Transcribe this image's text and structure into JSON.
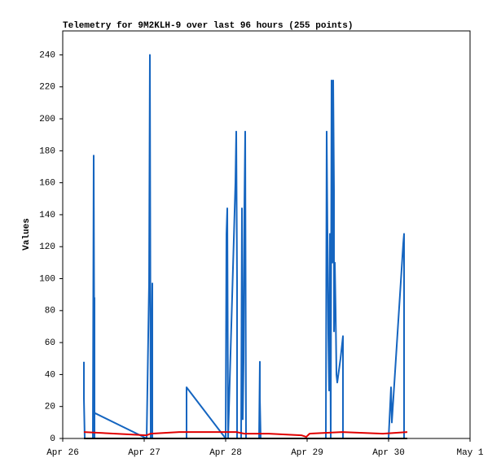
{
  "chart_data": {
    "type": "line",
    "title": "Telemetry for 9M2KLH-9 over last 96 hours (255 points)",
    "y_label": "Values",
    "xlim": [
      26,
      31
    ],
    "xticks": [
      {
        "value": 26,
        "label": "Apr 26"
      },
      {
        "value": 27,
        "label": "Apr 27"
      },
      {
        "value": 28,
        "label": "Apr 28"
      },
      {
        "value": 29,
        "label": "Apr 29"
      },
      {
        "value": 30,
        "label": "Apr 30"
      },
      {
        "value": 31,
        "label": "May 1"
      }
    ],
    "ylim": [
      0,
      255
    ],
    "yticks": [
      0,
      20,
      40,
      60,
      80,
      100,
      120,
      140,
      160,
      180,
      200,
      220,
      240
    ],
    "grid": false,
    "series": [
      {
        "color": "#1565c0",
        "x": [
          26.26,
          26.26,
          26.27,
          26.37,
          26.38,
          26.39,
          26.39,
          26.39,
          27.03,
          27.06,
          27.07,
          27.08,
          27.1,
          27.1,
          27.52,
          27.52,
          28.0,
          28.01,
          28.02,
          28.03,
          28.12,
          28.13,
          28.14,
          28.14,
          28.19,
          28.2,
          28.21,
          28.22,
          28.23,
          28.24,
          28.25,
          28.41,
          28.42,
          28.42,
          28.43,
          29.23,
          29.24,
          29.25,
          29.26,
          29.27,
          29.28,
          29.29,
          29.3,
          29.31,
          29.32,
          29.33,
          29.33,
          29.34,
          29.35,
          29.36,
          29.37,
          29.41,
          29.44,
          29.44,
          30.0,
          30.03,
          30.04,
          30.18,
          30.19,
          30.19
        ],
        "values": [
          48,
          25,
          0,
          0,
          177,
          0,
          88,
          16,
          0,
          97,
          240,
          0,
          97,
          0,
          0,
          32,
          0,
          128,
          144,
          0,
          160,
          192,
          97,
          0,
          0,
          144,
          12,
          48,
          145,
          192,
          0,
          0,
          48,
          25,
          0,
          0,
          192,
          128,
          65,
          30,
          128,
          0,
          224,
          110,
          224,
          155,
          67,
          110,
          80,
          40,
          35,
          50,
          64,
          0,
          0,
          32,
          10,
          122,
          128,
          0
        ]
      },
      {
        "color": "#e00000",
        "x": [
          26.26,
          27.03,
          27.08,
          27.43,
          28.13,
          28.23,
          28.53,
          28.93,
          28.99,
          29.03,
          29.43,
          29.93,
          30.23
        ],
        "values": [
          4,
          2,
          3,
          4,
          4,
          3,
          3,
          2,
          1,
          3,
          4,
          3,
          4
        ]
      },
      {
        "color": "#000000",
        "x": [
          26.26,
          30.23
        ],
        "values": [
          0,
          0
        ]
      }
    ]
  }
}
